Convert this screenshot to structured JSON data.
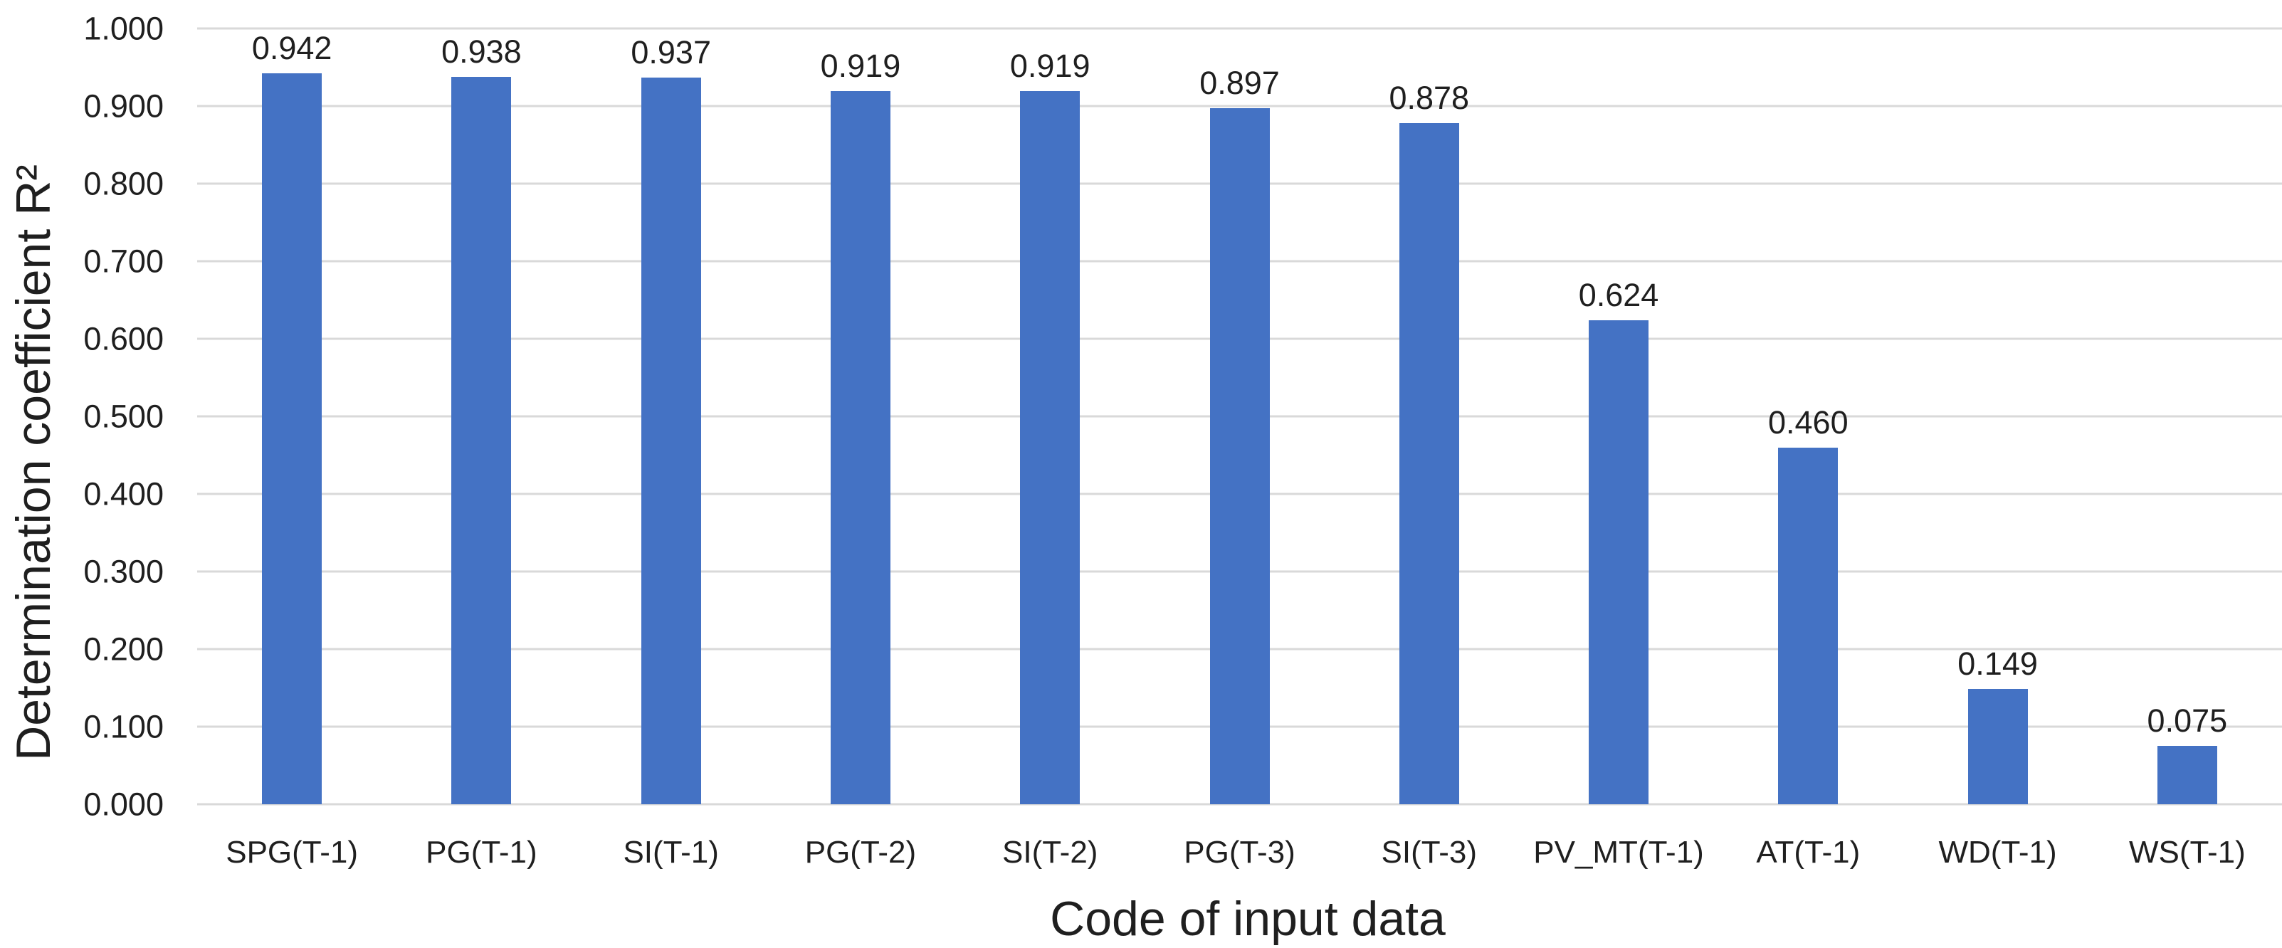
{
  "chart_data": {
    "type": "bar",
    "title": "",
    "xlabel": "Code of input data",
    "ylabel": "Determination coefficient R²",
    "categories": [
      "SPG(T-1)",
      "PG(T-1)",
      "SI(T-1)",
      "PG(T-2)",
      "SI(T-2)",
      "PG(T-3)",
      "SI(T-3)",
      "PV_MT(T-1)",
      "AT(T-1)",
      "WD(T-1)",
      "WS(T-1)"
    ],
    "values": [
      0.942,
      0.938,
      0.937,
      0.919,
      0.919,
      0.897,
      0.878,
      0.624,
      0.46,
      0.149,
      0.075
    ],
    "value_labels": [
      "0.942",
      "0.938",
      "0.937",
      "0.919",
      "0.919",
      "0.897",
      "0.878",
      "0.624",
      "0.460",
      "0.149",
      "0.075"
    ],
    "ylim": [
      0.0,
      1.0
    ],
    "y_ticks": [
      {
        "value": 0.0,
        "label": "0.000"
      },
      {
        "value": 0.1,
        "label": "0.100"
      },
      {
        "value": 0.2,
        "label": "0.200"
      },
      {
        "value": 0.3,
        "label": "0.300"
      },
      {
        "value": 0.4,
        "label": "0.400"
      },
      {
        "value": 0.5,
        "label": "0.500"
      },
      {
        "value": 0.6,
        "label": "0.600"
      },
      {
        "value": 0.7,
        "label": "0.700"
      },
      {
        "value": 0.8,
        "label": "0.800"
      },
      {
        "value": 0.9,
        "label": "0.900"
      },
      {
        "value": 1.0,
        "label": "1.000"
      }
    ],
    "grid": "horizontal",
    "legend": "none",
    "bar_color": "#4472C4",
    "gridline_color": "#D9D9D9",
    "text_color": "#1f1f1f"
  }
}
